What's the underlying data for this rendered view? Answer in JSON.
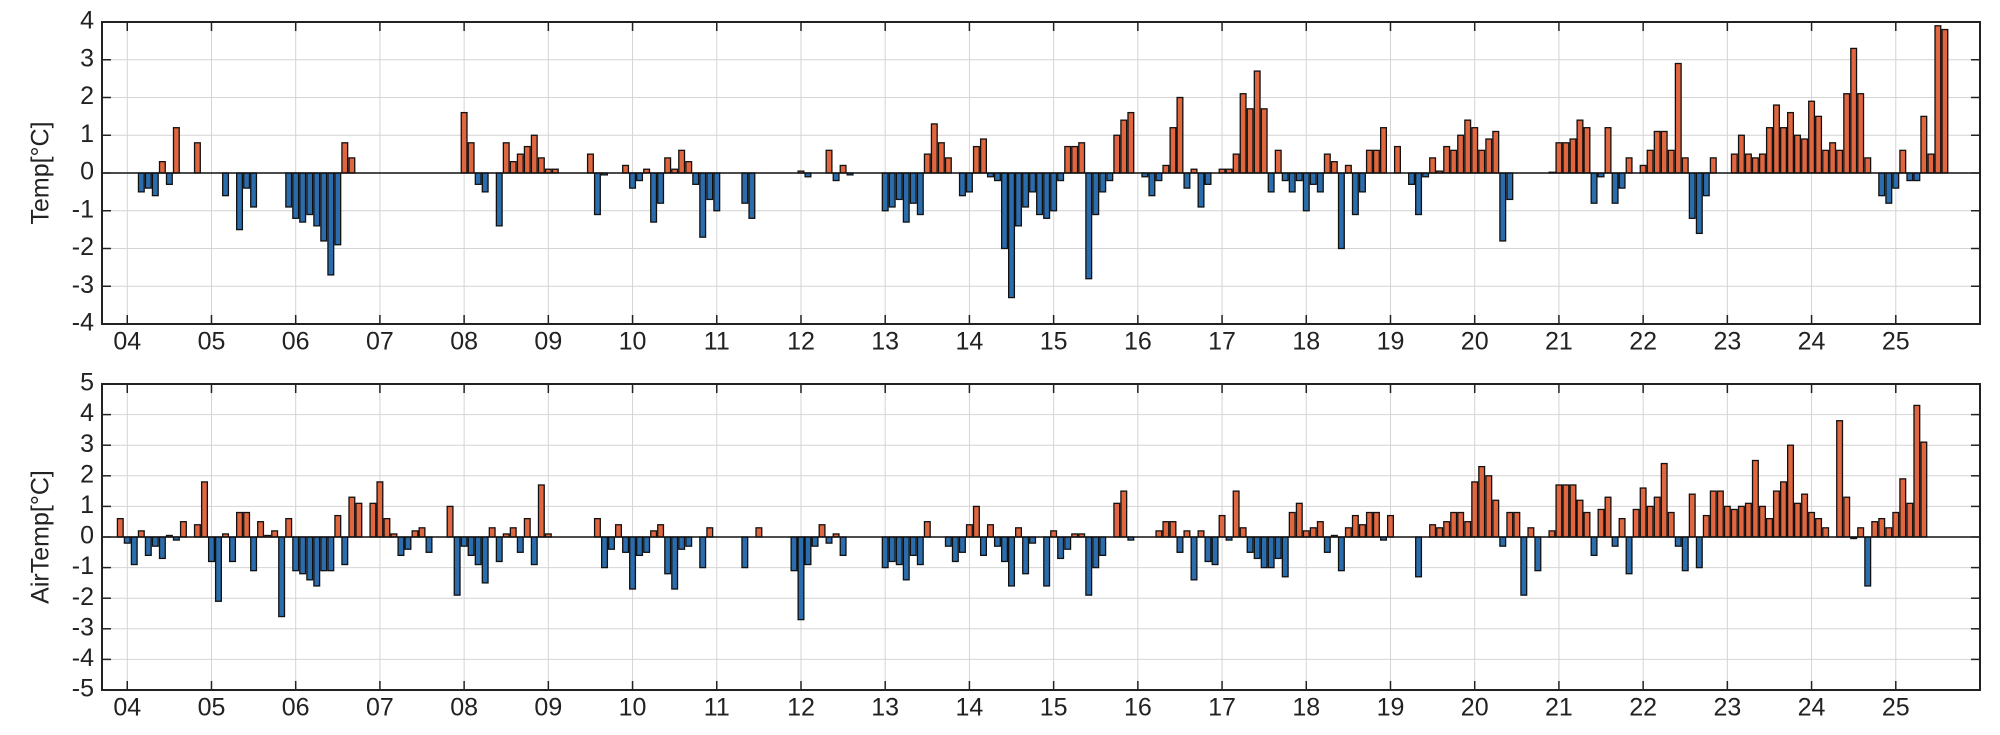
{
  "chart_data": [
    {
      "type": "bar",
      "ylabel": "Temp[°C]",
      "x": [
        3.917,
        4,
        4.083,
        4.167,
        4.25,
        4.333,
        4.417,
        4.5,
        4.583,
        4.667,
        4.75,
        4.833,
        4.917,
        5,
        5.083,
        5.167,
        5.25,
        5.333,
        5.417,
        5.5,
        5.583,
        5.667,
        5.75,
        5.833,
        5.917,
        6,
        6.083,
        6.167,
        6.25,
        6.333,
        6.417,
        6.5,
        6.583,
        6.667,
        6.75,
        6.833,
        6.917,
        7,
        7.083,
        7.167,
        7.25,
        7.333,
        7.417,
        7.5,
        7.583,
        7.667,
        7.75,
        7.833,
        7.917,
        8,
        8.083,
        8.167,
        8.25,
        8.333,
        8.417,
        8.5,
        8.583,
        8.667,
        8.75,
        8.833,
        8.917,
        9,
        9.083,
        9.167,
        9.25,
        9.333,
        9.417,
        9.5,
        9.583,
        9.667,
        9.75,
        9.833,
        9.917,
        10,
        10.083,
        10.167,
        10.25,
        10.333,
        10.417,
        10.5,
        10.583,
        10.667,
        10.75,
        10.833,
        10.917,
        11,
        11.083,
        11.167,
        11.25,
        11.333,
        11.417,
        11.5,
        11.583,
        11.667,
        11.75,
        11.833,
        11.917,
        12,
        12.083,
        12.167,
        12.25,
        12.333,
        12.417,
        12.5,
        12.583,
        12.667,
        12.75,
        12.833,
        12.917,
        13,
        13.083,
        13.167,
        13.25,
        13.333,
        13.417,
        13.5,
        13.583,
        13.667,
        13.75,
        13.833,
        13.917,
        14,
        14.083,
        14.167,
        14.25,
        14.333,
        14.417,
        14.5,
        14.583,
        14.667,
        14.75,
        14.833,
        14.917,
        15,
        15.083,
        15.167,
        15.25,
        15.333,
        15.417,
        15.5,
        15.583,
        15.667,
        15.75,
        15.833,
        15.917,
        16,
        16.083,
        16.167,
        16.25,
        16.333,
        16.417,
        16.5,
        16.583,
        16.667,
        16.75,
        16.833,
        16.917,
        17,
        17.083,
        17.167,
        17.25,
        17.333,
        17.417,
        17.5,
        17.583,
        17.667,
        17.75,
        17.833,
        17.917,
        18,
        18.083,
        18.167,
        18.25,
        18.333,
        18.417,
        18.5,
        18.583,
        18.667,
        18.75,
        18.833,
        18.917,
        19,
        19.083,
        19.167,
        19.25,
        19.333,
        19.417,
        19.5,
        19.583,
        19.667,
        19.75,
        19.833,
        19.917,
        20,
        20.083,
        20.167,
        20.25,
        20.333,
        20.417,
        20.5,
        20.583,
        20.667,
        20.75,
        20.833,
        20.917,
        21,
        21.083,
        21.167,
        21.25,
        21.333,
        21.417,
        21.5,
        21.583,
        21.667,
        21.75,
        21.833,
        21.917,
        22,
        22.083,
        22.167,
        22.25,
        22.333,
        22.417,
        22.5,
        22.583,
        22.667,
        22.75,
        22.833,
        22.917,
        23,
        23.083,
        23.167,
        23.25,
        23.333,
        23.417,
        23.5,
        23.583,
        23.667,
        23.75,
        23.833,
        23.917,
        24,
        24.083,
        24.167,
        24.25,
        24.333,
        24.417,
        24.5,
        24.583,
        24.667,
        24.75,
        24.833,
        24.917,
        25,
        25.083,
        25.167,
        25.25,
        25.333,
        25.417,
        25.5,
        25.583,
        25.667,
        25.75,
        25.833
      ],
      "values": [
        null,
        null,
        null,
        -0.5,
        -0.4,
        -0.6,
        0.3,
        -0.3,
        1.2,
        null,
        null,
        0.8,
        null,
        null,
        null,
        -0.6,
        null,
        -1.5,
        -0.4,
        -0.9,
        null,
        null,
        null,
        null,
        -0.9,
        -1.2,
        -1.3,
        -1.1,
        -1.4,
        -1.8,
        -2.7,
        -1.9,
        0.8,
        0.4,
        null,
        null,
        null,
        null,
        null,
        null,
        null,
        null,
        null,
        null,
        null,
        null,
        null,
        null,
        null,
        1.6,
        0.8,
        -0.3,
        -0.5,
        null,
        -1.4,
        0.8,
        0.3,
        0.5,
        0.7,
        1.0,
        0.4,
        0.1,
        0.1,
        null,
        null,
        null,
        null,
        0.5,
        -1.1,
        -0.05,
        null,
        null,
        0.2,
        -0.4,
        -0.2,
        0.1,
        -1.3,
        -0.8,
        0.4,
        0.1,
        0.6,
        0.3,
        -0.3,
        -1.7,
        -0.7,
        -1.0,
        null,
        null,
        null,
        -0.8,
        -1.2,
        null,
        null,
        null,
        null,
        null,
        null,
        0.05,
        -0.1,
        null,
        null,
        0.6,
        -0.2,
        0.2,
        -0.05,
        null,
        null,
        null,
        null,
        -1.0,
        -0.9,
        -0.7,
        -1.3,
        -0.8,
        -1.1,
        0.5,
        1.3,
        0.8,
        0.4,
        null,
        -0.6,
        -0.5,
        0.7,
        0.9,
        -0.1,
        -0.2,
        -2.0,
        -3.3,
        -1.4,
        -0.9,
        -0.5,
        -1.1,
        -1.2,
        -1.0,
        -0.2,
        0.7,
        0.7,
        0.8,
        -2.8,
        -1.1,
        -0.5,
        -0.2,
        1.0,
        1.4,
        1.6,
        null,
        -0.1,
        -0.6,
        -0.2,
        0.2,
        1.2,
        2.0,
        -0.4,
        0.1,
        -0.9,
        -0.3,
        null,
        0.1,
        0.1,
        0.5,
        2.1,
        1.7,
        2.7,
        1.7,
        -0.5,
        0.6,
        -0.2,
        -0.5,
        -0.2,
        -1.0,
        -0.3,
        -0.5,
        0.5,
        0.3,
        -2.0,
        0.2,
        -1.1,
        -0.5,
        0.6,
        0.6,
        1.2,
        null,
        0.7,
        null,
        -0.3,
        -1.1,
        -0.1,
        0.4,
        0.05,
        0.7,
        0.6,
        1.0,
        1.4,
        1.2,
        0.6,
        0.9,
        1.1,
        -1.8,
        -0.7,
        null,
        null,
        null,
        null,
        null,
        0.02,
        0.8,
        0.8,
        0.9,
        1.4,
        1.2,
        -0.8,
        -0.1,
        1.2,
        -0.8,
        -0.4,
        0.4,
        null,
        0.2,
        0.6,
        1.1,
        1.1,
        0.6,
        2.9,
        0.4,
        -1.2,
        -1.6,
        -0.6,
        0.4,
        null,
        null,
        0.5,
        1.0,
        0.5,
        0.4,
        0.5,
        1.2,
        1.8,
        1.2,
        1.6,
        1.0,
        0.9,
        1.9,
        1.5,
        0.6,
        0.8,
        0.6,
        2.1,
        3.3,
        2.1,
        0.4,
        null,
        -0.6,
        -0.8,
        -0.4,
        0.6,
        -0.2,
        -0.2,
        1.5,
        0.5,
        3.9,
        3.8,
        null,
        null,
        null
      ],
      "positive_color": "#e0663f",
      "negative_color": "#2b6cad",
      "edge_color": "#111111",
      "xlim": [
        3.7,
        26.0
      ],
      "xticks": [
        {
          "value": 4,
          "label": "04"
        },
        {
          "value": 5,
          "label": "05"
        },
        {
          "value": 6,
          "label": "06"
        },
        {
          "value": 7,
          "label": "07"
        },
        {
          "value": 8,
          "label": "08"
        },
        {
          "value": 9,
          "label": "09"
        },
        10,
        11,
        12,
        13,
        14,
        15,
        16,
        17,
        18,
        19,
        20,
        21,
        22,
        23,
        24,
        25
      ],
      "ylim": [
        -4,
        4
      ],
      "yticks": [
        -4,
        -3,
        -2,
        -1,
        0,
        1,
        2,
        3,
        4
      ],
      "grid": true
    },
    {
      "type": "bar",
      "ylabel": "AirTemp[°C]",
      "x": [
        3.917,
        4,
        4.083,
        4.167,
        4.25,
        4.333,
        4.417,
        4.5,
        4.583,
        4.667,
        4.75,
        4.833,
        4.917,
        5,
        5.083,
        5.167,
        5.25,
        5.333,
        5.417,
        5.5,
        5.583,
        5.667,
        5.75,
        5.833,
        5.917,
        6,
        6.083,
        6.167,
        6.25,
        6.333,
        6.417,
        6.5,
        6.583,
        6.667,
        6.75,
        6.833,
        6.917,
        7,
        7.083,
        7.167,
        7.25,
        7.333,
        7.417,
        7.5,
        7.583,
        7.667,
        7.75,
        7.833,
        7.917,
        8,
        8.083,
        8.167,
        8.25,
        8.333,
        8.417,
        8.5,
        8.583,
        8.667,
        8.75,
        8.833,
        8.917,
        9,
        9.083,
        9.167,
        9.25,
        9.333,
        9.417,
        9.5,
        9.583,
        9.667,
        9.75,
        9.833,
        9.917,
        10,
        10.083,
        10.167,
        10.25,
        10.333,
        10.417,
        10.5,
        10.583,
        10.667,
        10.75,
        10.833,
        10.917,
        11,
        11.083,
        11.167,
        11.25,
        11.333,
        11.417,
        11.5,
        11.583,
        11.667,
        11.75,
        11.833,
        11.917,
        12,
        12.083,
        12.167,
        12.25,
        12.333,
        12.417,
        12.5,
        12.583,
        12.667,
        12.75,
        12.833,
        12.917,
        13,
        13.083,
        13.167,
        13.25,
        13.333,
        13.417,
        13.5,
        13.583,
        13.667,
        13.75,
        13.833,
        13.917,
        14,
        14.083,
        14.167,
        14.25,
        14.333,
        14.417,
        14.5,
        14.583,
        14.667,
        14.75,
        14.833,
        14.917,
        15,
        15.083,
        15.167,
        15.25,
        15.333,
        15.417,
        15.5,
        15.583,
        15.667,
        15.75,
        15.833,
        15.917,
        16,
        16.083,
        16.167,
        16.25,
        16.333,
        16.417,
        16.5,
        16.583,
        16.667,
        16.75,
        16.833,
        16.917,
        17,
        17.083,
        17.167,
        17.25,
        17.333,
        17.417,
        17.5,
        17.583,
        17.667,
        17.75,
        17.833,
        17.917,
        18,
        18.083,
        18.167,
        18.25,
        18.333,
        18.417,
        18.5,
        18.583,
        18.667,
        18.75,
        18.833,
        18.917,
        19,
        19.083,
        19.167,
        19.25,
        19.333,
        19.417,
        19.5,
        19.583,
        19.667,
        19.75,
        19.833,
        19.917,
        20,
        20.083,
        20.167,
        20.25,
        20.333,
        20.417,
        20.5,
        20.583,
        20.667,
        20.75,
        20.833,
        20.917,
        21,
        21.083,
        21.167,
        21.25,
        21.333,
        21.417,
        21.5,
        21.583,
        21.667,
        21.75,
        21.833,
        21.917,
        22,
        22.083,
        22.167,
        22.25,
        22.333,
        22.417,
        22.5,
        22.583,
        22.667,
        22.75,
        22.833,
        22.917,
        23,
        23.083,
        23.167,
        23.25,
        23.333,
        23.417,
        23.5,
        23.583,
        23.667,
        23.75,
        23.833,
        23.917,
        24,
        24.083,
        24.167,
        24.25,
        24.333,
        24.417,
        24.5,
        24.583,
        24.667,
        24.75,
        24.833,
        24.917,
        25,
        25.083,
        25.167,
        25.25,
        25.333,
        25.417,
        25.5,
        25.583,
        25.667,
        25.75,
        25.833
      ],
      "values": [
        0.6,
        -0.2,
        -0.9,
        0.2,
        -0.6,
        -0.3,
        -0.7,
        0.05,
        -0.1,
        0.5,
        null,
        0.4,
        1.8,
        -0.8,
        -2.1,
        0.1,
        -0.8,
        0.8,
        0.8,
        -1.1,
        0.5,
        0.05,
        0.2,
        -2.6,
        0.6,
        -1.1,
        -1.2,
        -1.4,
        -1.6,
        -1.1,
        -1.1,
        0.7,
        -0.9,
        1.3,
        1.1,
        null,
        1.1,
        1.8,
        0.6,
        0.1,
        -0.6,
        -0.4,
        0.2,
        0.3,
        -0.5,
        null,
        null,
        1.0,
        -1.9,
        -0.3,
        -0.6,
        -0.9,
        -1.5,
        0.3,
        -0.8,
        0.1,
        0.3,
        -0.5,
        0.6,
        -0.9,
        1.7,
        0.1,
        null,
        null,
        null,
        null,
        null,
        null,
        0.6,
        -1.0,
        -0.4,
        0.4,
        -0.5,
        -1.7,
        -0.6,
        -0.5,
        0.2,
        0.4,
        -1.2,
        -1.7,
        -0.4,
        -0.3,
        null,
        -1.0,
        0.3,
        null,
        null,
        null,
        null,
        -1.0,
        null,
        0.3,
        null,
        null,
        null,
        null,
        -1.1,
        -2.7,
        -0.9,
        -0.3,
        0.4,
        -0.2,
        0.1,
        -0.6,
        null,
        null,
        null,
        null,
        null,
        -1.0,
        -0.8,
        -0.9,
        -1.4,
        -0.6,
        -0.9,
        0.5,
        null,
        null,
        -0.3,
        -0.8,
        -0.5,
        0.4,
        1.0,
        -0.6,
        0.4,
        -0.3,
        -0.8,
        -1.6,
        0.3,
        -1.2,
        -0.2,
        null,
        -1.6,
        0.2,
        -0.7,
        -0.4,
        0.1,
        0.1,
        -1.9,
        -1.0,
        -0.6,
        null,
        1.1,
        1.5,
        -0.1,
        null,
        null,
        null,
        0.2,
        0.5,
        0.5,
        -0.5,
        0.2,
        -1.4,
        0.2,
        -0.8,
        -0.9,
        0.7,
        -0.1,
        1.5,
        0.3,
        -0.5,
        -0.7,
        -1.0,
        -1.0,
        -0.7,
        -1.3,
        0.8,
        1.1,
        0.2,
        0.3,
        0.5,
        -0.5,
        0.05,
        -1.1,
        0.3,
        0.7,
        0.4,
        0.8,
        0.8,
        -0.1,
        0.7,
        null,
        null,
        null,
        -1.3,
        null,
        0.4,
        0.3,
        0.5,
        0.8,
        0.8,
        0.5,
        1.8,
        2.3,
        2.0,
        1.2,
        -0.3,
        0.8,
        0.8,
        -1.9,
        0.3,
        -1.1,
        null,
        0.2,
        1.7,
        1.7,
        1.7,
        1.2,
        0.8,
        -0.6,
        0.9,
        1.3,
        -0.3,
        0.6,
        -1.2,
        0.9,
        1.6,
        1.0,
        1.3,
        2.4,
        0.8,
        -0.3,
        -1.1,
        1.4,
        -1.0,
        0.7,
        1.5,
        1.5,
        1.0,
        0.9,
        1.0,
        1.1,
        2.5,
        1.0,
        0.6,
        1.5,
        1.8,
        3.0,
        1.1,
        1.4,
        0.8,
        0.6,
        0.3,
        null,
        3.8,
        1.3,
        -0.05,
        0.3,
        -1.6,
        0.5,
        0.6,
        0.3,
        0.8,
        1.9,
        1.1,
        4.3,
        3.1,
        null,
        null,
        null,
        null,
        null,
        null
      ],
      "positive_color": "#e0663f",
      "negative_color": "#2b6cad",
      "edge_color": "#111111",
      "xlim": [
        3.7,
        26.0
      ],
      "xticks": [
        {
          "value": 4,
          "label": "04"
        },
        {
          "value": 5,
          "label": "05"
        },
        {
          "value": 6,
          "label": "06"
        },
        {
          "value": 7,
          "label": "07"
        },
        {
          "value": 8,
          "label": "08"
        },
        {
          "value": 9,
          "label": "09"
        },
        10,
        11,
        12,
        13,
        14,
        15,
        16,
        17,
        18,
        19,
        20,
        21,
        22,
        23,
        24,
        25
      ],
      "ylim": [
        -5,
        5
      ],
      "yticks": [
        -5,
        -4,
        -3,
        -2,
        -1,
        0,
        1,
        2,
        3,
        4,
        5
      ],
      "grid": true
    }
  ]
}
